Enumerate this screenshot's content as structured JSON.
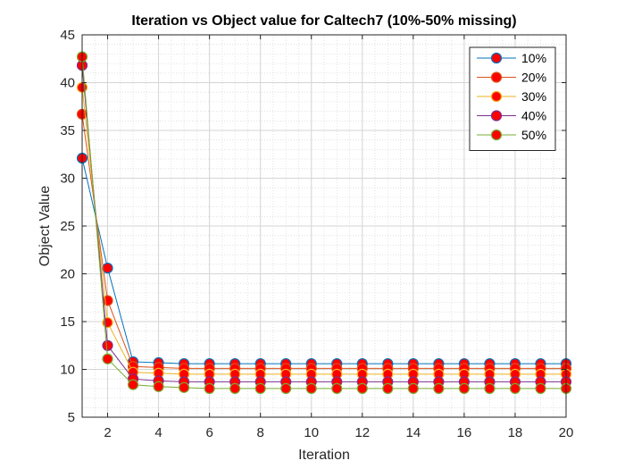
{
  "chart_data": {
    "type": "line",
    "title": "Iteration vs Object value for Caltech7 (10%-50% missing)",
    "xlabel": "Iteration",
    "ylabel": "Object Value",
    "xlim": [
      1,
      20
    ],
    "ylim": [
      5,
      45
    ],
    "xticks": [
      2,
      4,
      6,
      8,
      10,
      12,
      14,
      16,
      18,
      20
    ],
    "xtick_labels": [
      "2",
      "4",
      "6",
      "8",
      "10",
      "12",
      "14",
      "16",
      "18",
      "20"
    ],
    "yticks": [
      5,
      10,
      15,
      20,
      25,
      30,
      35,
      40,
      45
    ],
    "ytick_labels": [
      "5",
      "10",
      "15",
      "20",
      "25",
      "30",
      "35",
      "40",
      "45"
    ],
    "grid": true,
    "minor_grid": true,
    "legend_position": "top-right",
    "marker": {
      "face_color": "#ff0000",
      "size": "large circle"
    },
    "x": [
      1,
      2,
      3,
      4,
      5,
      6,
      7,
      8,
      9,
      10,
      11,
      12,
      13,
      14,
      15,
      16,
      17,
      18,
      19,
      20
    ],
    "series": [
      {
        "name": "10%",
        "color": "#0072bd",
        "marker_edge": "#0072bd",
        "values": [
          32.1,
          20.6,
          10.8,
          10.7,
          10.6,
          10.6,
          10.6,
          10.6,
          10.6,
          10.6,
          10.6,
          10.6,
          10.6,
          10.6,
          10.6,
          10.6,
          10.6,
          10.6,
          10.6,
          10.6
        ]
      },
      {
        "name": "20%",
        "color": "#d95319",
        "marker_edge": "#d95319",
        "values": [
          36.7,
          17.2,
          10.3,
          10.2,
          10.1,
          10.1,
          10.1,
          10.1,
          10.1,
          10.1,
          10.1,
          10.1,
          10.1,
          10.1,
          10.1,
          10.1,
          10.1,
          10.1,
          10.1,
          10.1
        ]
      },
      {
        "name": "30%",
        "color": "#edb120",
        "marker_edge": "#edb120",
        "values": [
          39.5,
          14.9,
          9.7,
          9.6,
          9.5,
          9.5,
          9.5,
          9.5,
          9.5,
          9.5,
          9.5,
          9.5,
          9.5,
          9.5,
          9.5,
          9.5,
          9.5,
          9.5,
          9.5,
          9.5
        ]
      },
      {
        "name": "40%",
        "color": "#7e2f8e",
        "marker_edge": "#7e2f8e",
        "values": [
          41.8,
          12.5,
          9.0,
          8.8,
          8.7,
          8.7,
          8.7,
          8.7,
          8.7,
          8.7,
          8.7,
          8.7,
          8.7,
          8.7,
          8.7,
          8.7,
          8.7,
          8.7,
          8.7,
          8.7
        ]
      },
      {
        "name": "50%",
        "color": "#77ac30",
        "marker_edge": "#77ac30",
        "values": [
          42.7,
          11.1,
          8.4,
          8.2,
          8.1,
          8.0,
          8.0,
          8.0,
          8.0,
          8.0,
          8.0,
          8.0,
          8.0,
          8.0,
          8.0,
          8.0,
          8.0,
          8.0,
          8.0,
          8.0
        ]
      }
    ]
  }
}
